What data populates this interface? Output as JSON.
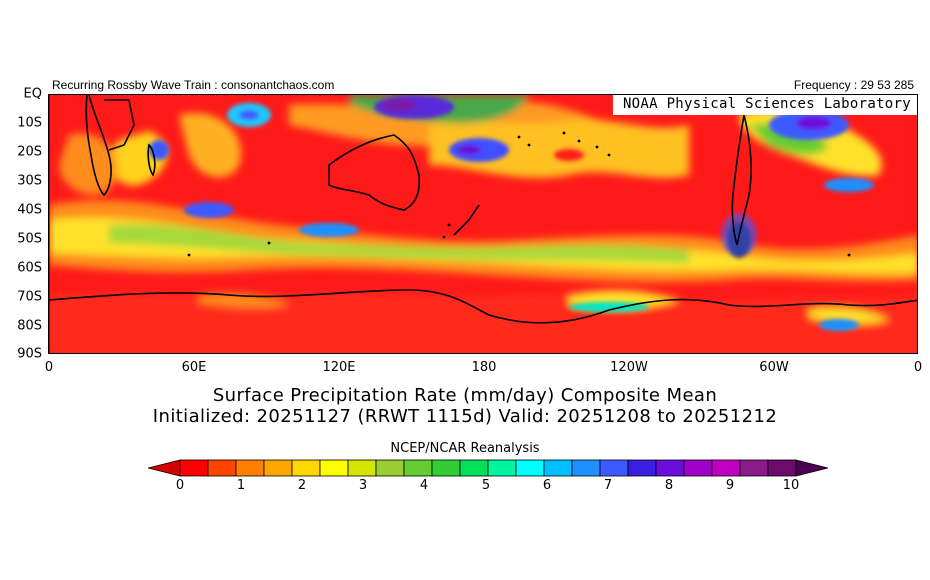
{
  "header": {
    "left_text": "Recurring Rossby Wave Train : consonantchaos.com",
    "right_text": "Frequency : 29 53 285"
  },
  "map": {
    "overlay_label": "NOAA Physical Sciences Laboratory",
    "lat_labels": [
      "EQ",
      "10S",
      "20S",
      "30S",
      "40S",
      "50S",
      "60S",
      "70S",
      "80S",
      "90S"
    ],
    "lon_labels": [
      "0",
      "60E",
      "120E",
      "180",
      "120W",
      "60W",
      "0"
    ],
    "background_color": "#ff1a1a"
  },
  "title": {
    "line1": "Surface Precipitation Rate (mm/day) Composite Mean",
    "line2": "Initialized: 20251127 (RRWT 1115d) Valid: 20251208 to 20251212"
  },
  "source": "NCEP/NCAR Reanalysis",
  "colorbar": {
    "tick_labels": [
      "0",
      "1",
      "2",
      "3",
      "4",
      "5",
      "6",
      "7",
      "8",
      "9",
      "10"
    ],
    "colors": [
      "#d40000",
      "#ff0000",
      "#ff4500",
      "#ff7f00",
      "#ffa500",
      "#ffd700",
      "#ffff00",
      "#d4e600",
      "#9acd32",
      "#66cc33",
      "#33cc33",
      "#00e05a",
      "#00f5a0",
      "#00ffff",
      "#00bfff",
      "#1e90ff",
      "#3c5aff",
      "#3a1fe0",
      "#6a0ddd",
      "#a000c8",
      "#c000c0",
      "#8b1a8b",
      "#6b0b6b",
      "#4b0050"
    ]
  }
}
